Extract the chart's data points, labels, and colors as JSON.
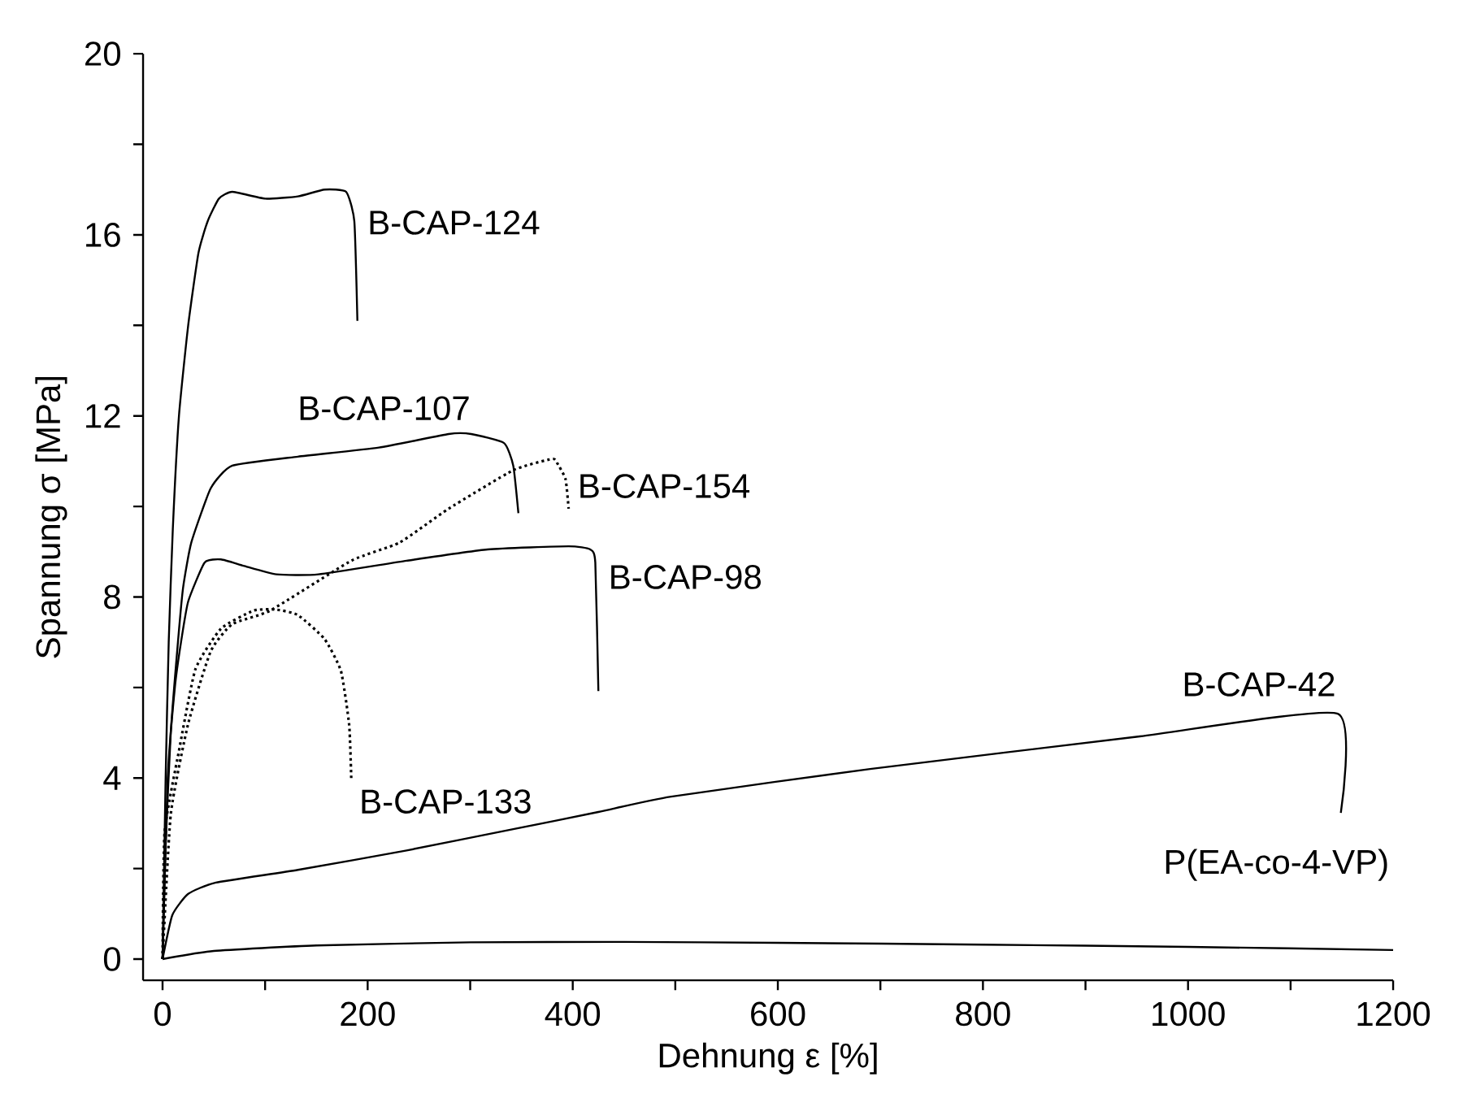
{
  "chart_data": {
    "type": "line",
    "xlabel": "Dehnung ε [%]",
    "ylabel": "Spannung σ [MPa]",
    "xlim": [
      -19,
      1200
    ],
    "ylim": [
      -0.47,
      20
    ],
    "xticks": [
      0,
      {
        "value": 100,
        "label": null
      },
      200,
      {
        "value": 300,
        "label": null
      },
      400,
      {
        "value": 500,
        "label": null
      },
      600,
      {
        "value": 700,
        "label": null
      },
      800,
      {
        "value": 900,
        "label": null
      },
      1000,
      {
        "value": 1100,
        "label": null
      },
      1200
    ],
    "yticks": [
      0,
      {
        "value": 2,
        "label": null
      },
      4,
      {
        "value": 6,
        "label": null
      },
      8,
      {
        "value": 10,
        "label": null
      },
      12,
      {
        "value": 14,
        "label": null
      },
      16,
      {
        "value": 18,
        "label": null
      },
      20
    ],
    "grid": false,
    "legend": false,
    "marker": "none",
    "series": [
      {
        "name": "B-CAP-124",
        "color": "#000000",
        "line_style": "solid",
        "x": [
          0,
          3,
          6,
          10,
          16,
          25,
          35,
          44,
          55,
          68,
          100,
          132,
          158,
          179,
          187,
          190
        ],
        "values": [
          0,
          4,
          7,
          9.5,
          12,
          14,
          15.6,
          16.3,
          16.8,
          16.95,
          16.8,
          16.85,
          17.0,
          16.95,
          16.3,
          14.1
        ]
      },
      {
        "name": "B-CAP-107",
        "color": "#000000",
        "line_style": "solid",
        "x": [
          0,
          3,
          8,
          15,
          20,
          28,
          47,
          68,
          132,
          211,
          279,
          301,
          333,
          342,
          347
        ],
        "values": [
          0,
          2.5,
          5,
          7,
          8.2,
          9.2,
          10.4,
          10.9,
          11.1,
          11.3,
          11.6,
          11.6,
          11.4,
          10.9,
          9.85
        ]
      },
      {
        "name": "B-CAP-154",
        "color": "#000000",
        "line_style": "dotted",
        "x": [
          0,
          8,
          25,
          47,
          68,
          105,
          184,
          231,
          279,
          342,
          380,
          385,
          393,
          396
        ],
        "values": [
          0,
          3.2,
          5.2,
          6.8,
          7.4,
          7.7,
          8.8,
          9.2,
          9.95,
          10.8,
          11.05,
          10.95,
          10.6,
          9.95
        ]
      },
      {
        "name": "B-CAP-98",
        "color": "#000000",
        "line_style": "solid",
        "x": [
          0,
          5,
          12,
          18,
          25,
          41,
          57,
          79,
          111,
          152,
          238,
          317,
          396,
          417,
          422,
          425
        ],
        "values": [
          0,
          4,
          6,
          7,
          7.9,
          8.76,
          8.83,
          8.69,
          8.5,
          8.5,
          8.8,
          9.05,
          9.12,
          9.05,
          8.76,
          5.92
        ]
      },
      {
        "name": "B-CAP-133",
        "color": "#000000",
        "line_style": "dotted",
        "x": [
          0,
          2,
          16,
          32,
          57,
          89,
          111,
          132,
          158,
          174,
          182,
          184
        ],
        "values": [
          0,
          2.8,
          4.6,
          6.4,
          7.3,
          7.7,
          7.72,
          7.6,
          7.07,
          6.36,
          5.17,
          4.0
        ]
      },
      {
        "name": "B-CAP-42",
        "color": "#000000",
        "line_style": "solid",
        "x": [
          0,
          9.5,
          25,
          52,
          132,
          238,
          342,
          425,
          496,
          690,
          953,
          1146,
          1149
        ],
        "values": [
          0,
          0.97,
          1.44,
          1.69,
          1.97,
          2.4,
          2.87,
          3.25,
          3.59,
          4.2,
          4.92,
          5.42,
          3.23
        ]
      },
      {
        "name": "P(EA-co-4-VP)",
        "color": "#000000",
        "line_style": "solid",
        "x": [
          0,
          50,
          150,
          300,
          450,
          600,
          800,
          1000,
          1200
        ],
        "values": [
          0,
          0.18,
          0.3,
          0.37,
          0.38,
          0.36,
          0.32,
          0.27,
          0.2
        ]
      }
    ]
  }
}
